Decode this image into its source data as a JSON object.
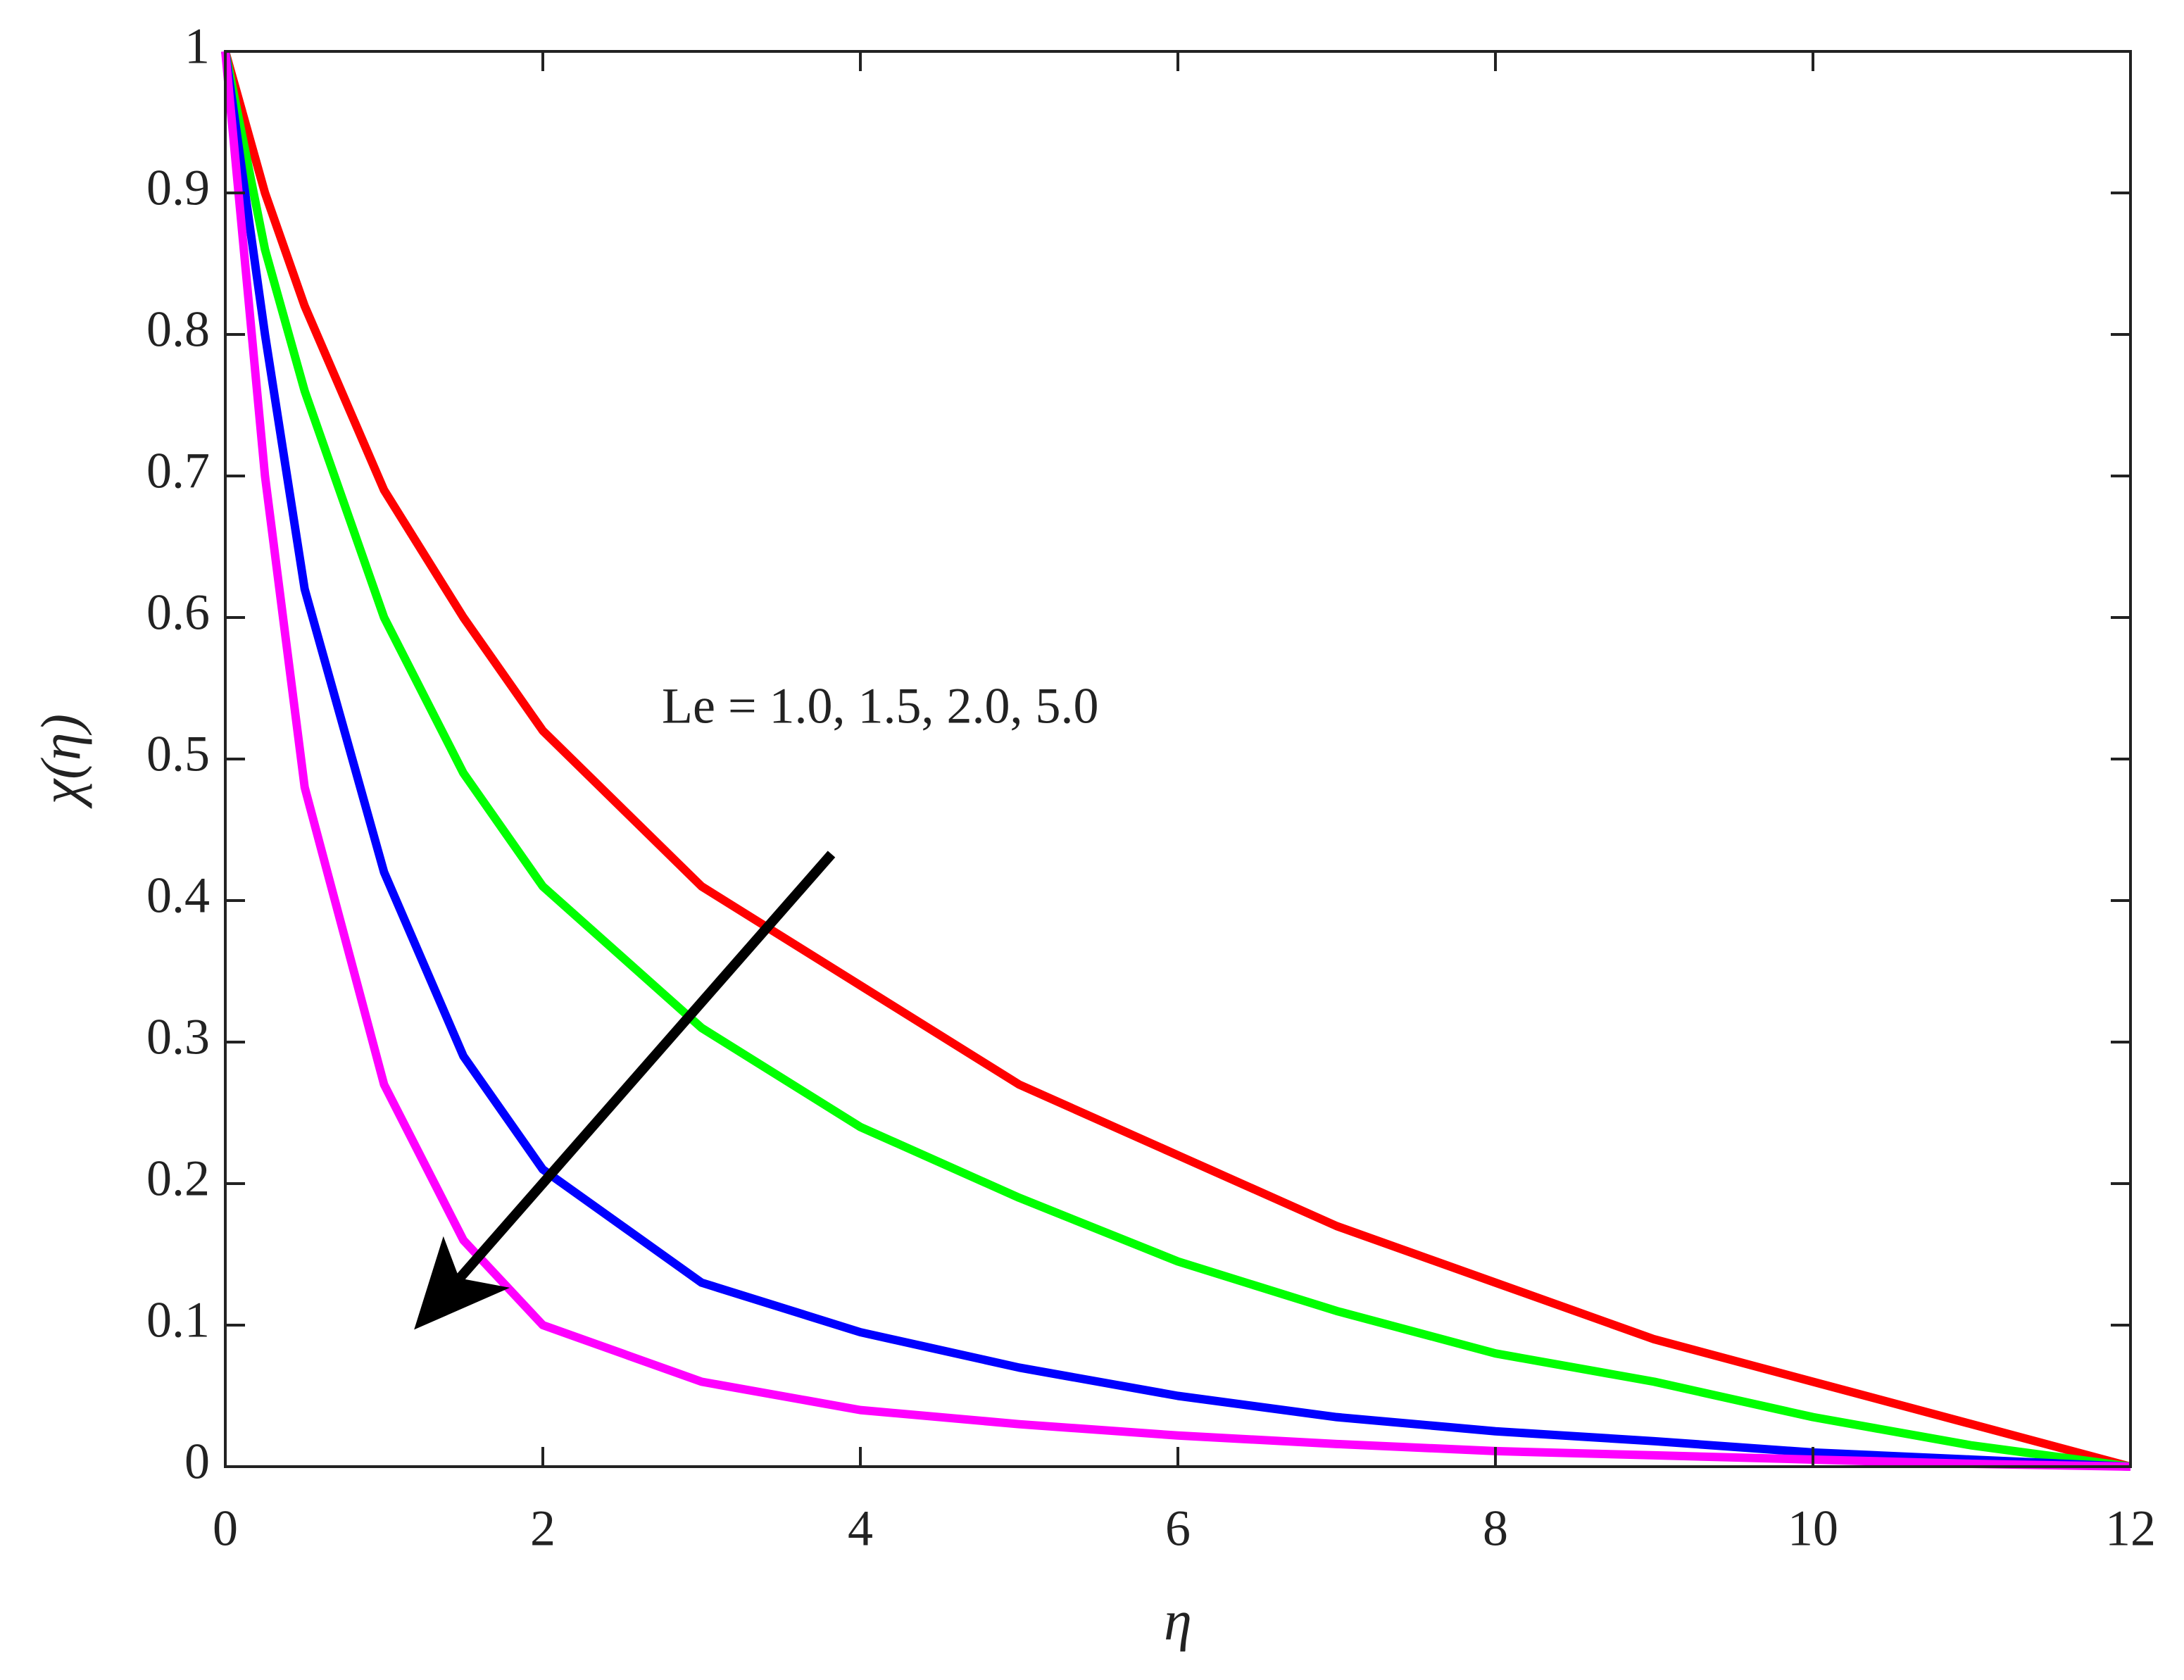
{
  "chart_data": {
    "type": "line",
    "x_label": "η",
    "y_label": "χ(η)",
    "annotation": "Le = 1.0, 1.5, 2.0, 5.0",
    "x": [
      0,
      0.25,
      0.5,
      1,
      1.5,
      2,
      3,
      4,
      5,
      6,
      7,
      8,
      9,
      10,
      11,
      12
    ],
    "series": [
      {
        "color": "#ff0000",
        "values": [
          1,
          0.9,
          0.82,
          0.69,
          0.6,
          0.52,
          0.41,
          0.34,
          0.27,
          0.22,
          0.17,
          0.13,
          0.09,
          0.06,
          0.03,
          0
        ]
      },
      {
        "color": "#00ff00",
        "values": [
          1,
          0.86,
          0.76,
          0.6,
          0.49,
          0.41,
          0.31,
          0.24,
          0.19,
          0.145,
          0.11,
          0.08,
          0.06,
          0.035,
          0.015,
          0
        ]
      },
      {
        "color": "#0000ff",
        "values": [
          1,
          0.8,
          0.62,
          0.42,
          0.29,
          0.21,
          0.13,
          0.095,
          0.07,
          0.05,
          0.035,
          0.025,
          0.018,
          0.01,
          0.005,
          0
        ]
      },
      {
        "color": "#ff00ff",
        "values": [
          1,
          0.7,
          0.48,
          0.27,
          0.16,
          0.1,
          0.06,
          0.04,
          0.03,
          0.022,
          0.016,
          0.011,
          0.008,
          0.005,
          0.002,
          0
        ]
      }
    ],
    "xlim": [
      0,
      12
    ],
    "xticks": [
      0,
      2,
      4,
      6,
      8,
      10,
      12
    ],
    "ylim": [
      0,
      1
    ],
    "yticks": [
      0,
      0.1,
      0.2,
      0.3,
      0.4,
      0.5,
      0.6,
      0.7,
      0.8,
      0.9,
      1
    ],
    "grid": false
  }
}
